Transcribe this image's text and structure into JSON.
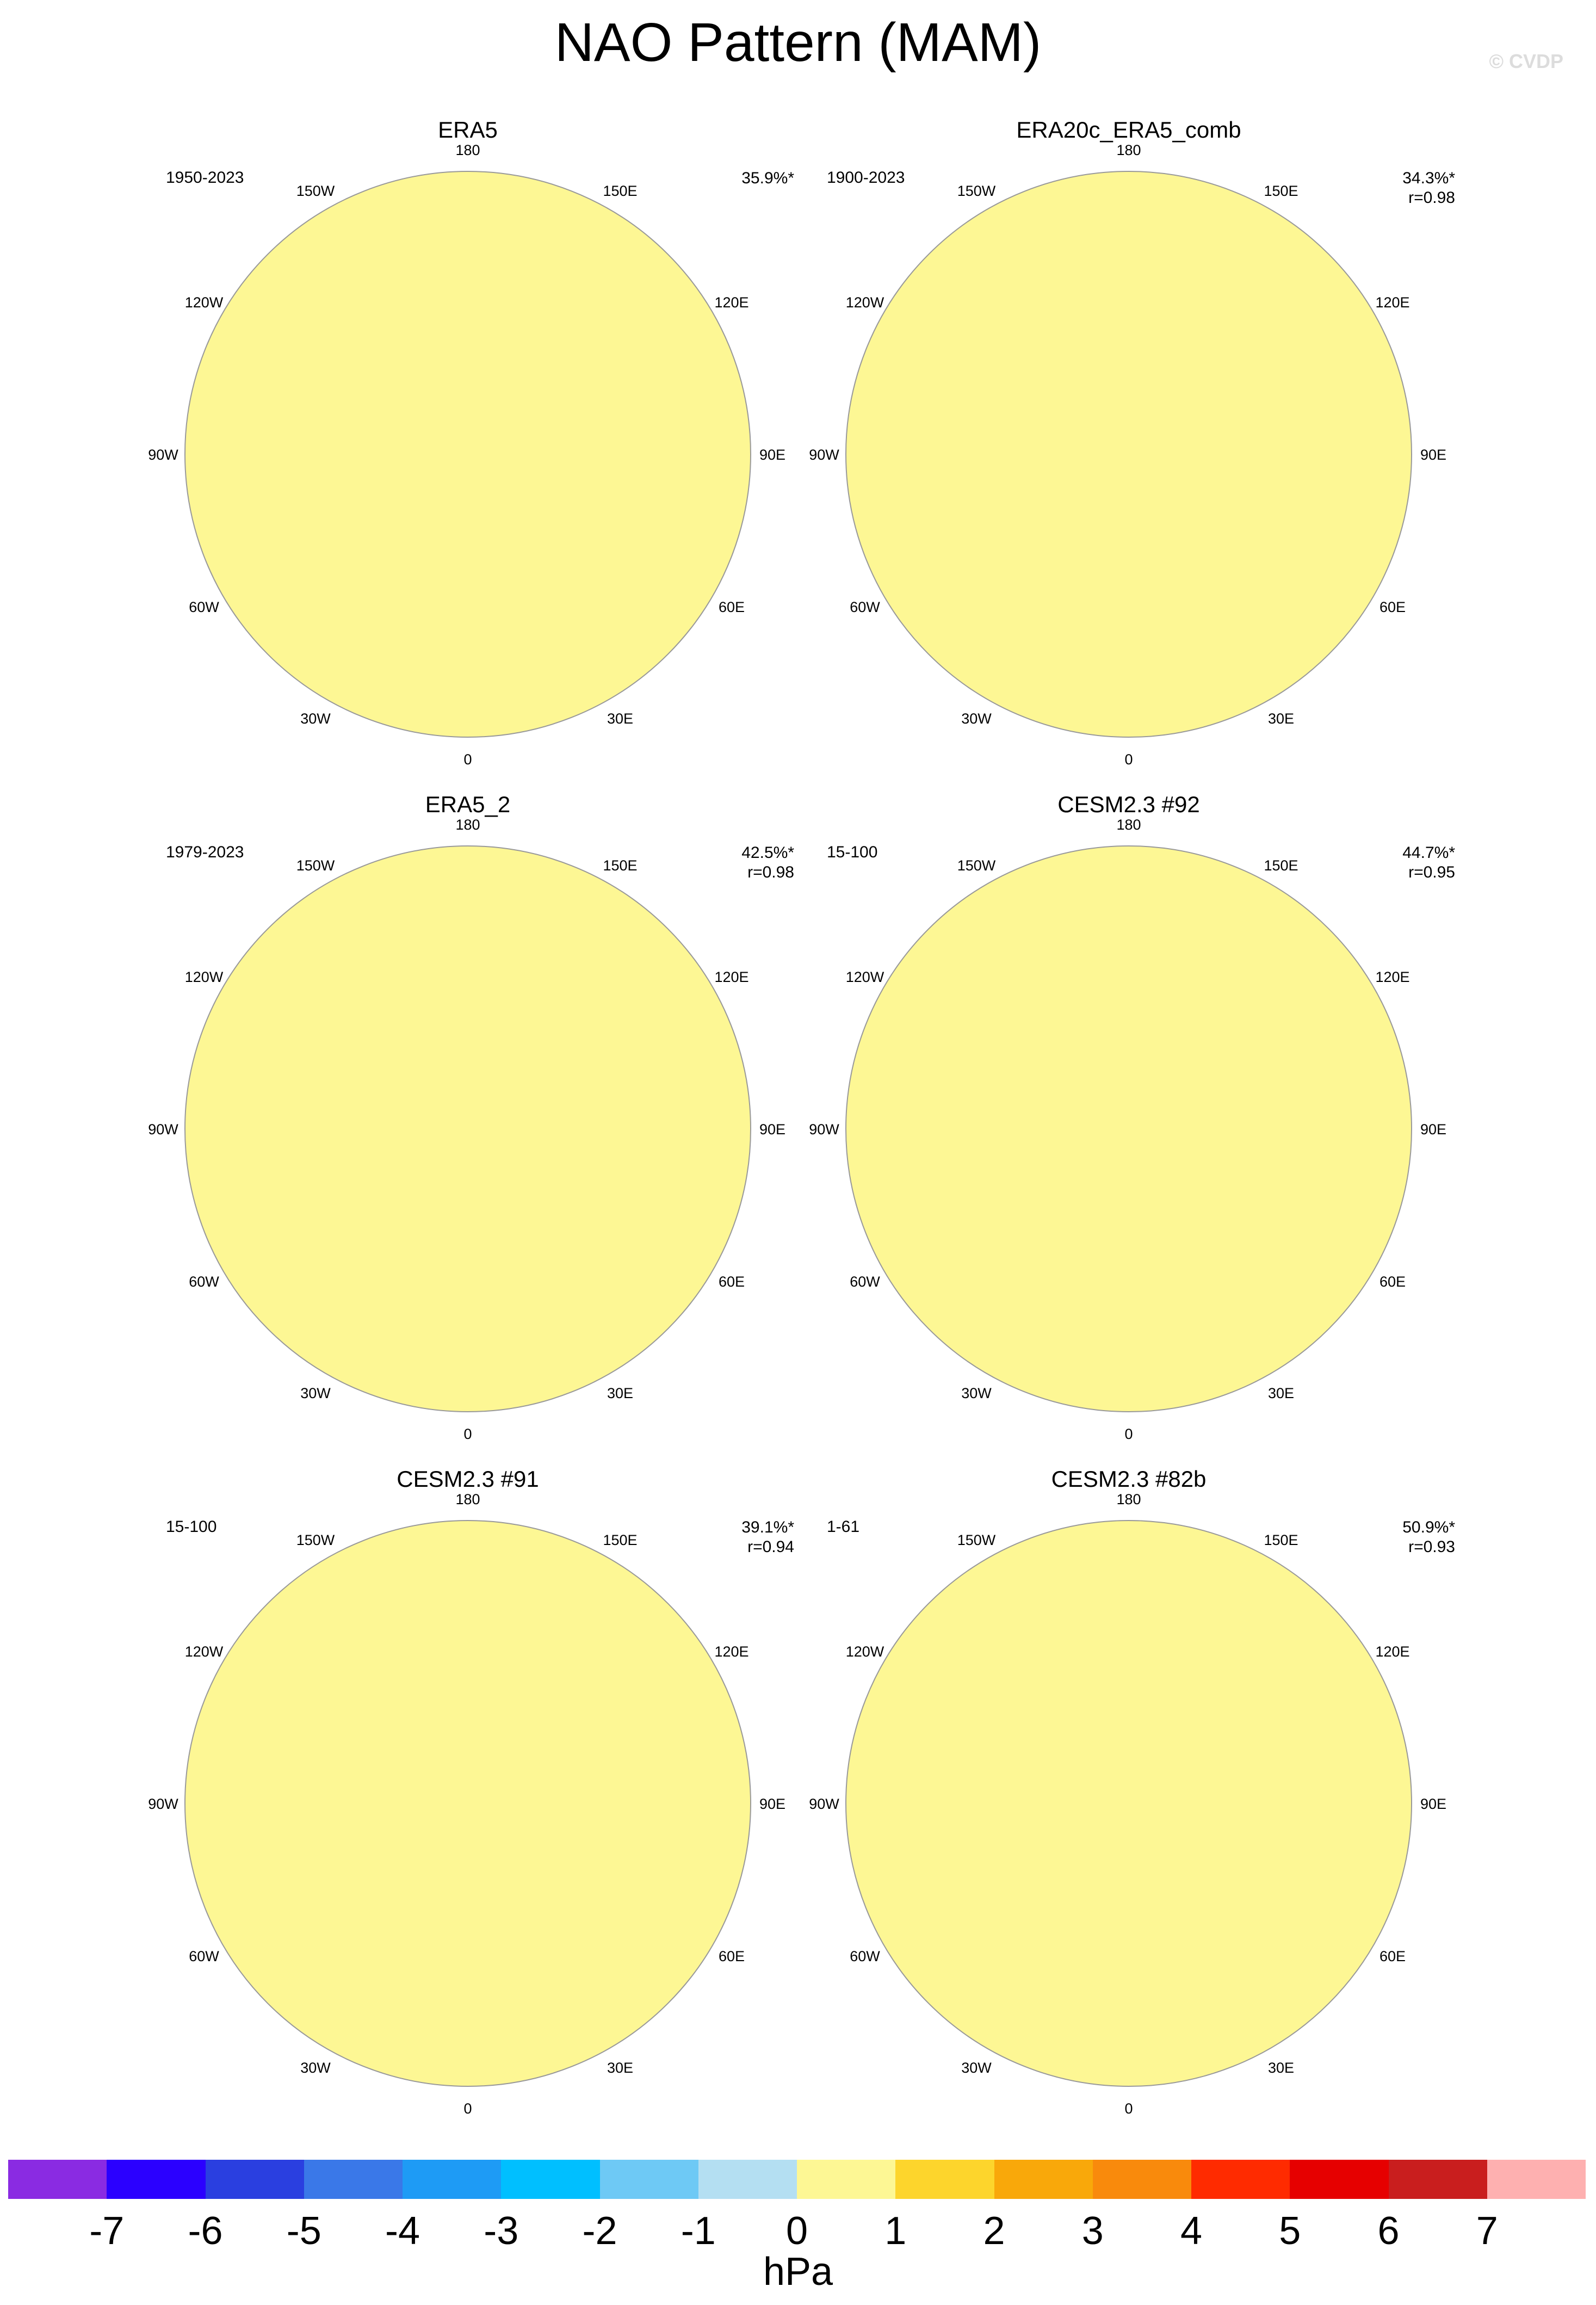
{
  "title": "NAO Pattern (MAM)",
  "copyright": "© CVDP",
  "lon_labels": [
    "180",
    "150E",
    "120E",
    "90E",
    "60E",
    "30E",
    "0",
    "30W",
    "60W",
    "90W",
    "120W",
    "150W"
  ],
  "panels": [
    {
      "title": "ERA5",
      "period": "1950-2023",
      "pct": "35.9%*",
      "r": ""
    },
    {
      "title": "ERA20c_ERA5_comb",
      "period": "1900-2023",
      "pct": "34.3%*",
      "r": "r=0.98"
    },
    {
      "title": "ERA5_2",
      "period": "1979-2023",
      "pct": "42.5%*",
      "r": "r=0.98"
    },
    {
      "title": "CESM2.3 #92",
      "period": "15-100",
      "pct": "44.7%*",
      "r": "r=0.95"
    },
    {
      "title": "CESM2.3 #91",
      "period": "15-100",
      "pct": "39.1%*",
      "r": "r=0.94"
    },
    {
      "title": "CESM2.3 #82b",
      "period": "1-61",
      "pct": "50.9%*",
      "r": "r=0.93"
    }
  ],
  "colorbar": {
    "colors": [
      "#8a2be2",
      "#2b00ff",
      "#2a3fe0",
      "#3a78e8",
      "#1e9bf5",
      "#00bfff",
      "#6ec9f5",
      "#b4dff2",
      "#fdf794",
      "#fdd52c",
      "#f9a80a",
      "#f98a0c",
      "#ff2b00",
      "#e60000",
      "#c91e1e",
      "#feb0b0"
    ],
    "ticks": [
      "-7",
      "-6",
      "-5",
      "-4",
      "-3",
      "-2",
      "-1",
      "0",
      "1",
      "2",
      "3",
      "4",
      "5",
      "6",
      "7"
    ],
    "units": "hPa"
  }
}
